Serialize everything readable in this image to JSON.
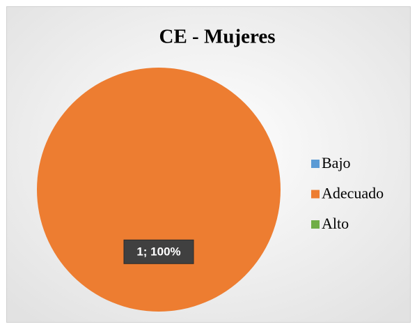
{
  "chart_data": {
    "type": "pie",
    "title": "CE - Mujeres",
    "categories": [
      "Bajo",
      "Adecuado",
      "Alto"
    ],
    "values": [
      0,
      1,
      0
    ],
    "value_labels": [
      null,
      "1; 100%",
      null
    ],
    "colors": [
      "#5b9bd5",
      "#ed7d31",
      "#70ad47"
    ],
    "legend": "right"
  }
}
